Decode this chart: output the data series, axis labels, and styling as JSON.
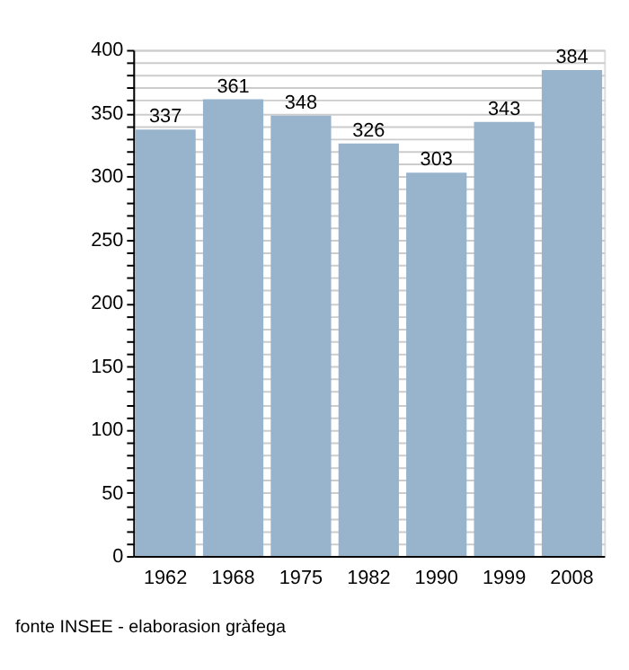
{
  "chart_data": {
    "type": "bar",
    "categories": [
      "1962",
      "1968",
      "1975",
      "1982",
      "1990",
      "1999",
      "2008"
    ],
    "values": [
      337,
      361,
      348,
      326,
      303,
      343,
      384
    ],
    "color": "#98b3cc",
    "data_labels": true,
    "ylim": [
      0,
      400
    ],
    "yticks": [
      0,
      {
        "value": 10,
        "label": null
      },
      {
        "value": 20,
        "label": null
      },
      {
        "value": 30,
        "label": null
      },
      {
        "value": 40,
        "label": null
      },
      50,
      {
        "value": 60,
        "label": null
      },
      {
        "value": 70,
        "label": null
      },
      {
        "value": 80,
        "label": null
      },
      {
        "value": 90,
        "label": null
      },
      100,
      {
        "value": 110,
        "label": null
      },
      {
        "value": 120,
        "label": null
      },
      {
        "value": 130,
        "label": null
      },
      {
        "value": 140,
        "label": null
      },
      150,
      {
        "value": 160,
        "label": null
      },
      {
        "value": 170,
        "label": null
      },
      {
        "value": 180,
        "label": null
      },
      {
        "value": 190,
        "label": null
      },
      200,
      {
        "value": 210,
        "label": null
      },
      {
        "value": 220,
        "label": null
      },
      {
        "value": 230,
        "label": null
      },
      {
        "value": 240,
        "label": null
      },
      250,
      {
        "value": 260,
        "label": null
      },
      {
        "value": 270,
        "label": null
      },
      {
        "value": 280,
        "label": null
      },
      {
        "value": 290,
        "label": null
      },
      300,
      {
        "value": 310,
        "label": null
      },
      {
        "value": 320,
        "label": null
      },
      {
        "value": 330,
        "label": null
      },
      {
        "value": 340,
        "label": null
      },
      350,
      {
        "value": 360,
        "label": null
      },
      {
        "value": 370,
        "label": null
      },
      {
        "value": 380,
        "label": null
      },
      {
        "value": 390,
        "label": null
      },
      400
    ],
    "grid": "y",
    "annotations": [
      "fonte INSEE - elaborasion gràfega"
    ]
  }
}
